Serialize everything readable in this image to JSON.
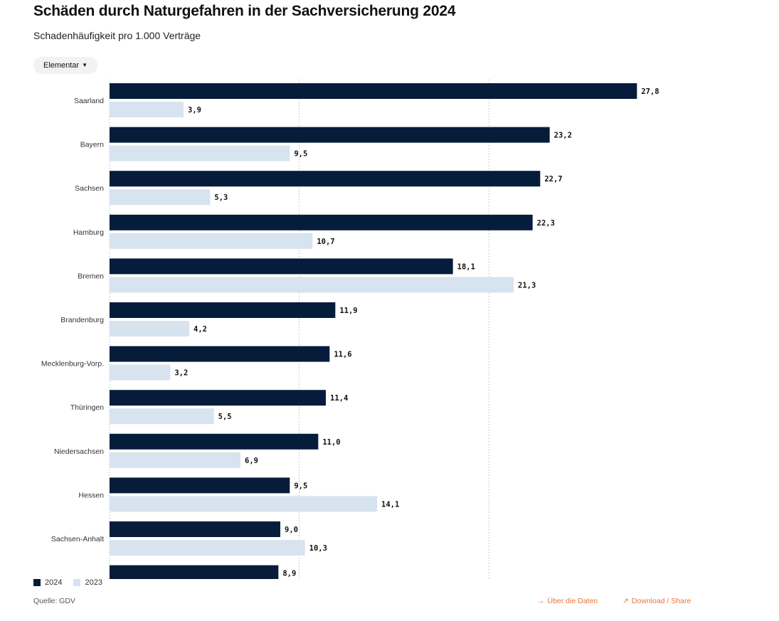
{
  "header": {
    "title": "Schäden durch Naturgefahren in der Sachversicherung 2024",
    "subtitle": "Schadenhäufigkeit pro 1.000 Verträge"
  },
  "filter": {
    "selected": "Elementar",
    "icon": "chevron-down-icon"
  },
  "colors": {
    "series_2024": "#061c3b",
    "series_2023": "#d7e3ef",
    "grid": "#9aa3ad",
    "link": "#e8743b"
  },
  "chart_data": {
    "type": "bar",
    "orientation": "horizontal",
    "categories": [
      "Saarland",
      "Bayern",
      "Sachsen",
      "Hamburg",
      "Bremen",
      "Brandenburg",
      "Mecklenburg-Vorp.",
      "Thüringen",
      "Niedersachsen",
      "Hessen",
      "Sachsen-Anhalt",
      ""
    ],
    "series": [
      {
        "name": "2024",
        "values": [
          27.8,
          23.2,
          22.7,
          22.3,
          18.1,
          11.9,
          11.6,
          11.4,
          11.0,
          9.5,
          9.0,
          8.9
        ],
        "labels": [
          "27,8",
          "23,2",
          "22,7",
          "22,3",
          "18,1",
          "11,9",
          "11,6",
          "11,4",
          "11,0",
          "9,5",
          "9,0",
          "8,9"
        ]
      },
      {
        "name": "2023",
        "values": [
          3.9,
          9.5,
          5.3,
          10.7,
          21.3,
          4.2,
          3.2,
          5.5,
          6.9,
          14.1,
          10.3,
          null
        ],
        "labels": [
          "3,9",
          "9,5",
          "5,3",
          "10,7",
          "21,3",
          "4,2",
          "3,2",
          "5,5",
          "6,9",
          "14,1",
          "10,3",
          ""
        ]
      }
    ],
    "xlim": [
      0,
      30
    ],
    "gridlines": [
      10,
      20
    ],
    "grid": true,
    "legend": "bottom-left"
  },
  "legend": {
    "items": [
      "2024",
      "2023"
    ]
  },
  "footer": {
    "source": "Quelle: GDV",
    "data_link": "Über die Daten",
    "data_link_icon": "arrow-right-icon",
    "share_link": "Download / Share",
    "share_link_icon": "arrow-up-right-icon"
  }
}
